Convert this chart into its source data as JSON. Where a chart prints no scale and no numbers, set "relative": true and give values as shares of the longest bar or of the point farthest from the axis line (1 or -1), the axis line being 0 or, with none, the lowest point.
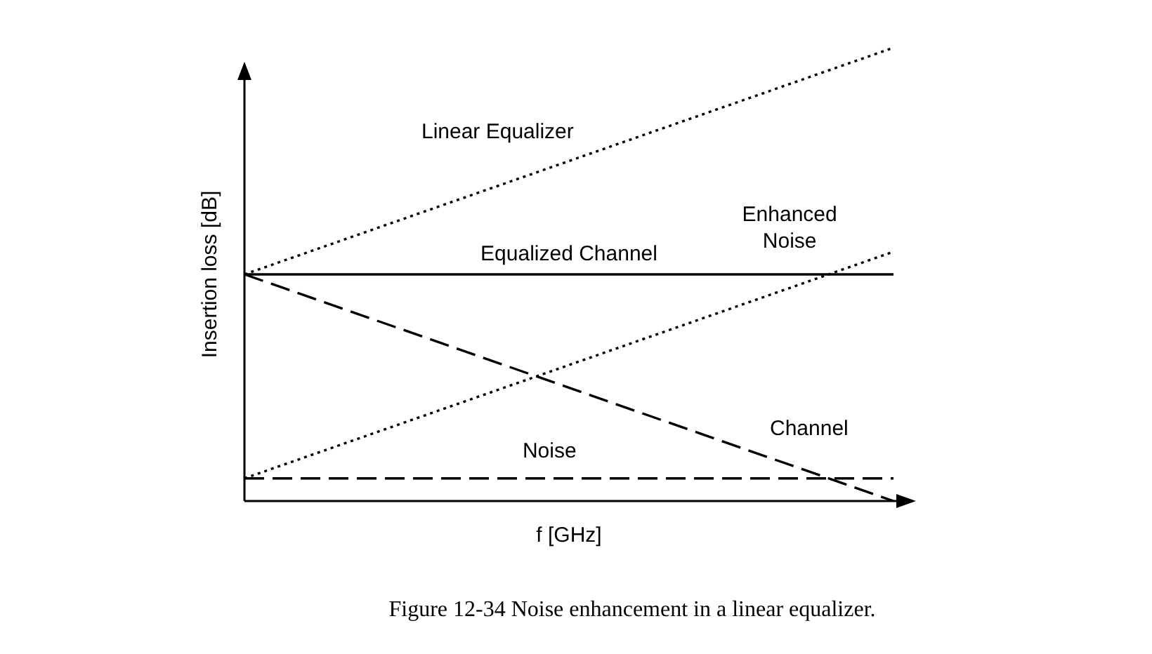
{
  "chart_data": {
    "type": "line",
    "relative": true,
    "categories": [
      null,
      null
    ],
    "xlabel": "f [GHz]",
    "ylabel": "Insertion loss [dB]",
    "legend": false,
    "annotations": [
      "Figure 12-34 Noise enhancement in a linear equalizer."
    ],
    "series": [
      {
        "name": "Linear Equalizer",
        "color": "#000000",
        "values": [
          0.5,
          1
        ],
        "line_style": "dotted"
      },
      {
        "name": "Equalized Channel",
        "color": "#000000",
        "values": [
          0.5,
          0.5
        ],
        "line_style": "solid"
      },
      {
        "name": "Enhanced\nNoise",
        "color": "#000000",
        "values": [
          0.05,
          0.55
        ],
        "line_style": "dotted"
      },
      {
        "name": "Channel",
        "color": "#000000",
        "values": [
          0.5,
          0
        ],
        "line_style": "dashed"
      },
      {
        "name": "Noise",
        "color": "#000000",
        "values": [
          0.05,
          0.05
        ],
        "line_style": "dashed"
      }
    ]
  }
}
